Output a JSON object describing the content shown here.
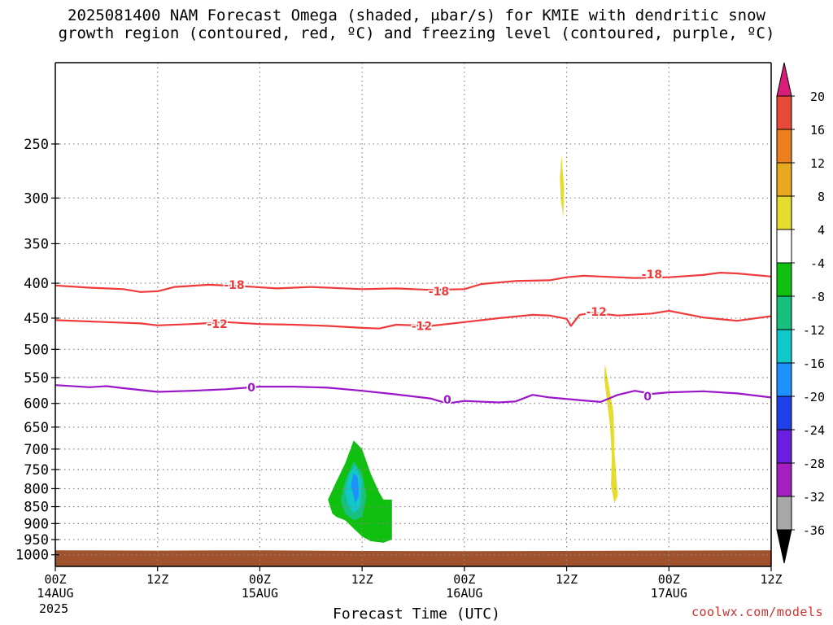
{
  "title": {
    "line1": "2025081400 NAM Forecast Omega (shaded, μbar/s) for KMIE with dendritic snow",
    "line2": "growth region (contoured, red, ºC) and freezing level (contoured, purple, ºC)"
  },
  "credit": "coolwx.com/models",
  "chart_data": {
    "type": "time-height cross section",
    "title": "2025081400 NAM Forecast Omega (shaded, μbar/s) for KMIE with dendritic snow growth region (contoured, red, ºC) and freezing level (contoured, purple, ºC)",
    "xlabel": "Forecast Time (UTC)",
    "ylabel": "",
    "x_ticks": [
      {
        "hour": 0,
        "label": "00Z",
        "sub": "14AUG"
      },
      {
        "hour": 12,
        "label": "12Z",
        "sub": ""
      },
      {
        "hour": 24,
        "label": "00Z",
        "sub": "15AUG"
      },
      {
        "hour": 36,
        "label": "12Z",
        "sub": ""
      },
      {
        "hour": 48,
        "label": "00Z",
        "sub": "16AUG"
      },
      {
        "hour": 60,
        "label": "12Z",
        "sub": ""
      },
      {
        "hour": 72,
        "label": "00Z",
        "sub": "17AUG"
      },
      {
        "hour": 84,
        "label": "12Z",
        "sub": ""
      }
    ],
    "year_label": "2025",
    "xlim": [
      0,
      84
    ],
    "ylim_hPa": [
      1040,
      190
    ],
    "y_scale": "log",
    "y_ticks": [
      250,
      300,
      350,
      400,
      450,
      500,
      550,
      600,
      650,
      700,
      750,
      800,
      850,
      900,
      950,
      1000
    ],
    "grid": true,
    "contours": [
      {
        "name": "-18",
        "color": "#ee3a3a",
        "points": [
          [
            0,
            403
          ],
          [
            4,
            406
          ],
          [
            8,
            408
          ],
          [
            10,
            412
          ],
          [
            12,
            411
          ],
          [
            14,
            405
          ],
          [
            18,
            402
          ],
          [
            22,
            404
          ],
          [
            26,
            407
          ],
          [
            30,
            405
          ],
          [
            36,
            408
          ],
          [
            40,
            407
          ],
          [
            44,
            409
          ],
          [
            48,
            408
          ],
          [
            50,
            401
          ],
          [
            54,
            397
          ],
          [
            58,
            396
          ],
          [
            60,
            392
          ],
          [
            62,
            390
          ],
          [
            64,
            391
          ],
          [
            68,
            393
          ],
          [
            72,
            392
          ],
          [
            76,
            389
          ],
          [
            78,
            386
          ],
          [
            80,
            387
          ],
          [
            84,
            391
          ]
        ],
        "labels": [
          {
            "hour": 21,
            "hPa": 402,
            "text": "-18"
          },
          {
            "hour": 45,
            "hPa": 411,
            "text": "-18"
          },
          {
            "hour": 70,
            "hPa": 388,
            "text": "-18"
          }
        ]
      },
      {
        "name": "-12",
        "color": "#ee3a3a",
        "points": [
          [
            0,
            453
          ],
          [
            6,
            456
          ],
          [
            10,
            458
          ],
          [
            12,
            461
          ],
          [
            16,
            459
          ],
          [
            20,
            456
          ],
          [
            24,
            459
          ],
          [
            28,
            460
          ],
          [
            32,
            462
          ],
          [
            36,
            465
          ],
          [
            38,
            466
          ],
          [
            40,
            460
          ],
          [
            44,
            462
          ],
          [
            48,
            456
          ],
          [
            52,
            450
          ],
          [
            56,
            445
          ],
          [
            58,
            446
          ],
          [
            60,
            451
          ],
          [
            60.5,
            462
          ],
          [
            61.5,
            445
          ],
          [
            63,
            442
          ],
          [
            66,
            446
          ],
          [
            70,
            443
          ],
          [
            72,
            439
          ],
          [
            76,
            449
          ],
          [
            80,
            454
          ],
          [
            84,
            447
          ]
        ],
        "labels": [
          {
            "hour": 19,
            "hPa": 459,
            "text": "-12"
          },
          {
            "hour": 43,
            "hPa": 462,
            "text": "-12"
          },
          {
            "hour": 63.5,
            "hPa": 440,
            "text": "-12"
          }
        ]
      },
      {
        "name": "0",
        "color": "#9a16c8",
        "points": [
          [
            0,
            564
          ],
          [
            4,
            568
          ],
          [
            6,
            566
          ],
          [
            8,
            570
          ],
          [
            12,
            577
          ],
          [
            16,
            575
          ],
          [
            20,
            572
          ],
          [
            24,
            567
          ],
          [
            28,
            567
          ],
          [
            32,
            569
          ],
          [
            36,
            575
          ],
          [
            40,
            582
          ],
          [
            44,
            590
          ],
          [
            46,
            600
          ],
          [
            48,
            595
          ],
          [
            52,
            598
          ],
          [
            54,
            596
          ],
          [
            56,
            583
          ],
          [
            58,
            588
          ],
          [
            62,
            594
          ],
          [
            64,
            597
          ],
          [
            66,
            583
          ],
          [
            68,
            575
          ],
          [
            70,
            581
          ],
          [
            72,
            578
          ],
          [
            76,
            576
          ],
          [
            80,
            580
          ],
          [
            84,
            588
          ]
        ],
        "labels": [
          {
            "hour": 23,
            "hPa": 568,
            "text": "0"
          },
          {
            "hour": 46,
            "hPa": 592,
            "text": "0"
          },
          {
            "hour": 69.5,
            "hPa": 586,
            "text": "0"
          }
        ]
      }
    ],
    "omega_regions": [
      {
        "level": "-4 to -8",
        "color": "#10c010",
        "points": [
          [
            32.5,
            870
          ],
          [
            32,
            830
          ],
          [
            33,
            780
          ],
          [
            34,
            735
          ],
          [
            35,
            680
          ],
          [
            36,
            700
          ],
          [
            37,
            760
          ],
          [
            38,
            810
          ],
          [
            38.5,
            830
          ],
          [
            39.5,
            830
          ],
          [
            39.5,
            950
          ],
          [
            38.5,
            960
          ],
          [
            37,
            955
          ],
          [
            36,
            940
          ],
          [
            35,
            915
          ],
          [
            34,
            890
          ],
          [
            33,
            880
          ]
        ]
      },
      {
        "level": "-8 to -12",
        "color": "#18c080",
        "points": [
          [
            33.5,
            830
          ],
          [
            34,
            780
          ],
          [
            35,
            730
          ],
          [
            36,
            760
          ],
          [
            36.5,
            820
          ],
          [
            36,
            880
          ],
          [
            35,
            890
          ],
          [
            34,
            870
          ]
        ]
      },
      {
        "level": "-12 to -16",
        "color": "#10c8c8",
        "points": [
          [
            34,
            810
          ],
          [
            34.5,
            760
          ],
          [
            35.2,
            740
          ],
          [
            36,
            780
          ],
          [
            35.8,
            850
          ],
          [
            35,
            870
          ],
          [
            34.3,
            840
          ]
        ]
      },
      {
        "level": "-16 to -20",
        "color": "#1e90ff",
        "points": [
          [
            34.7,
            790
          ],
          [
            35,
            760
          ],
          [
            35.5,
            770
          ],
          [
            35.6,
            820
          ],
          [
            35.2,
            840
          ]
        ]
      },
      {
        "level": "4 to 8",
        "color": "#e6dc2e",
        "points": [
          [
            59.4,
            260
          ],
          [
            59.7,
            290
          ],
          [
            59.6,
            320
          ],
          [
            59.3,
            300
          ],
          [
            59.2,
            280
          ]
        ]
      },
      {
        "level": "4 to 8",
        "color": "#e6dc2e",
        "points": [
          [
            64.5,
            525
          ],
          [
            65,
            570
          ],
          [
            65.5,
            620
          ],
          [
            65.6,
            700
          ],
          [
            65.8,
            760
          ],
          [
            66,
            820
          ],
          [
            65.6,
            840
          ],
          [
            65.2,
            790
          ],
          [
            65.3,
            720
          ],
          [
            65.1,
            650
          ],
          [
            64.7,
            590
          ],
          [
            64.4,
            550
          ]
        ]
      }
    ],
    "terrain": {
      "color": "#a0522d",
      "top_hPa": [
        [
          0,
          985
        ],
        [
          12,
          986
        ],
        [
          24,
          985
        ],
        [
          36,
          987
        ],
        [
          48,
          988
        ],
        [
          60,
          987
        ],
        [
          70,
          986
        ],
        [
          84,
          985
        ]
      ],
      "bottom_hPa": 1040
    },
    "colorbar": {
      "labels": [
        "20",
        "16",
        "12",
        "8",
        "4",
        "-4",
        "-8",
        "-12",
        "-16",
        "-20",
        "-24",
        "-28",
        "-32",
        "-36"
      ],
      "colors": [
        "#d81e7a",
        "#e84a3a",
        "#ee7f20",
        "#e8a820",
        "#e6dc2e",
        "#ffffff",
        "#10c010",
        "#18c080",
        "#10c8c8",
        "#1e90ff",
        "#1e40e8",
        "#6a1ee0",
        "#a41ec0",
        "#a8a8a8",
        "#000000"
      ]
    }
  }
}
